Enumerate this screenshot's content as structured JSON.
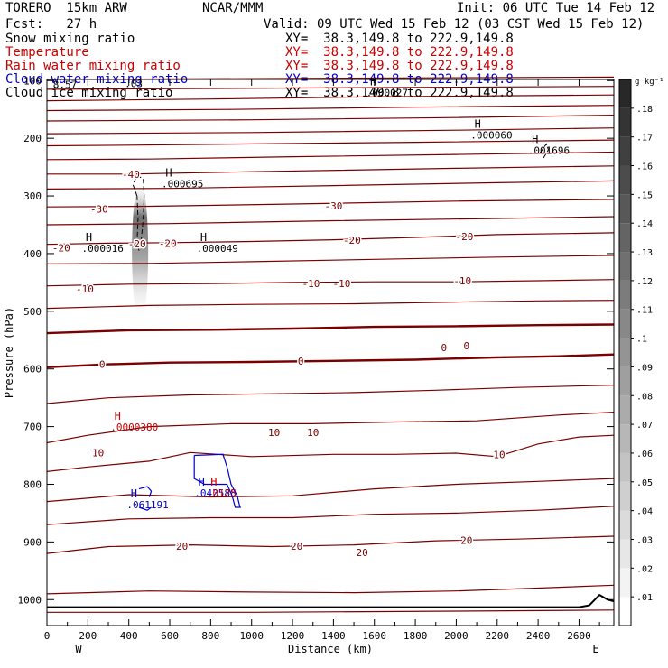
{
  "header": {
    "model": "TORERO  15km ARW",
    "org": "NCAR/MMM",
    "init": "Init: 06 UTC Tue 14 Feb 12",
    "fcst": "Fcst:   27 h",
    "valid": "Valid: 09 UTC Wed 15 Feb 12 (03 CST Wed 15 Feb 12)"
  },
  "legend": [
    {
      "label": "Snow mixing ratio",
      "xy": "XY=  38.3,149.8 to 222.9,149.8",
      "color": "#000000"
    },
    {
      "label": "Temperature",
      "xy": "XY=  38.3,149.8 to 222.9,149.8",
      "color": "#cc0000"
    },
    {
      "label": "Rain water mixing ratio",
      "xy": "XY=  38.3,149.8 to 222.9,149.8",
      "color": "#cc0000"
    },
    {
      "label": "Cloud water mixing ratio",
      "xy": "XY=  38.3,149.8 to 222.9,149.8",
      "color": "#0000cc"
    },
    {
      "label": "Cloud ice mixing ratio",
      "xy": "XY=  38.3,149.8 to 222.9,149.8",
      "color": "#000000"
    }
  ],
  "colors": {
    "temperature_contour": "#7a0000",
    "cloud_water": "#0000cc",
    "rain_water": "#cc0000",
    "snow": "#000000",
    "terrain": "#000000"
  },
  "chart_data": {
    "type": "contour-cross-section",
    "x_axis": {
      "label": "Distance (km)",
      "range": [
        0,
        2770
      ],
      "ticks": [
        0,
        200,
        400,
        600,
        800,
        1000,
        1200,
        1400,
        1600,
        1800,
        2000,
        2200,
        2400,
        2600
      ],
      "left_end_label": "W",
      "right_end_label": "E"
    },
    "y_axis": {
      "label": "Pressure (hPa)",
      "range": [
        1045,
        98
      ],
      "ticks": [
        100,
        200,
        300,
        400,
        500,
        600,
        700,
        800,
        900,
        1000
      ]
    },
    "temperature_contours": [
      {
        "level": -40,
        "points": [
          [
            0,
            98
          ],
          [
            2770,
            94
          ]
        ]
      },
      {
        "level": -40,
        "points": [
          [
            0,
            115
          ],
          [
            2770,
            110
          ]
        ]
      },
      {
        "level": -40,
        "points": [
          [
            0,
            135
          ],
          [
            800,
            132
          ],
          [
            1600,
            128
          ],
          [
            2770,
            125
          ]
        ]
      },
      {
        "level": -40,
        "points": [
          [
            0,
            152
          ],
          [
            900,
            150
          ],
          [
            1800,
            146
          ],
          [
            2770,
            143
          ]
        ]
      },
      {
        "level": -40,
        "points": [
          [
            0,
            170
          ],
          [
            1000,
            168
          ],
          [
            2000,
            164
          ],
          [
            2770,
            160
          ]
        ]
      },
      {
        "level": -40,
        "points": [
          [
            0,
            192
          ],
          [
            1000,
            190
          ],
          [
            2000,
            186
          ],
          [
            2770,
            182
          ]
        ]
      },
      {
        "level": -40,
        "points": [
          [
            0,
            213
          ],
          [
            400,
            212
          ],
          [
            900,
            210
          ],
          [
            1800,
            207
          ],
          [
            2770,
            203
          ]
        ]
      },
      {
        "level": -40,
        "points": [
          [
            0,
            237
          ],
          [
            500,
            236
          ],
          [
            1200,
            232
          ],
          [
            2000,
            228
          ],
          [
            2770,
            224
          ]
        ]
      },
      {
        "level": -40,
        "points": [
          [
            0,
            262
          ],
          [
            400,
            262
          ],
          [
            1000,
            258
          ],
          [
            2000,
            252
          ],
          [
            2770,
            248
          ]
        ]
      },
      {
        "level": -40,
        "points": [
          [
            0,
            288
          ],
          [
            600,
            287
          ],
          [
            1400,
            282
          ],
          [
            2200,
            277
          ],
          [
            2770,
            274
          ]
        ]
      },
      {
        "level": -30,
        "points": [
          [
            0,
            319
          ],
          [
            500,
            318
          ],
          [
            1200,
            314
          ],
          [
            2000,
            309
          ],
          [
            2770,
            306
          ]
        ]
      },
      {
        "level": -30,
        "points": [
          [
            0,
            350
          ],
          [
            600,
            348
          ],
          [
            1400,
            343
          ],
          [
            2200,
            339
          ],
          [
            2770,
            336
          ]
        ]
      },
      {
        "level": -20,
        "points": [
          [
            0,
            384
          ],
          [
            300,
            382
          ],
          [
            600,
            381
          ],
          [
            1000,
            379
          ],
          [
            1400,
            376
          ],
          [
            1800,
            372
          ],
          [
            2200,
            367
          ],
          [
            2770,
            364
          ]
        ]
      },
      {
        "level": -20,
        "points": [
          [
            0,
            418
          ],
          [
            500,
            417
          ],
          [
            1000,
            414
          ],
          [
            1600,
            410
          ],
          [
            2200,
            406
          ],
          [
            2770,
            403
          ]
        ]
      },
      {
        "level": -10,
        "points": [
          [
            0,
            456
          ],
          [
            400,
            453
          ],
          [
            800,
            452
          ],
          [
            1200,
            450
          ],
          [
            1600,
            449
          ],
          [
            2000,
            449
          ],
          [
            2400,
            447
          ],
          [
            2770,
            445
          ]
        ]
      },
      {
        "level": -10,
        "points": [
          [
            0,
            495
          ],
          [
            500,
            490
          ],
          [
            1000,
            488
          ],
          [
            1500,
            487
          ],
          [
            2000,
            484
          ],
          [
            2400,
            482
          ],
          [
            2770,
            481
          ]
        ]
      },
      {
        "level": 0,
        "points": [
          [
            0,
            538
          ],
          [
            400,
            533
          ],
          [
            800,
            532
          ],
          [
            1200,
            530
          ],
          [
            1600,
            527
          ],
          [
            2000,
            526
          ],
          [
            2400,
            524
          ],
          [
            2770,
            523
          ]
        ]
      },
      {
        "level": 0,
        "points": [
          [
            0,
            597
          ],
          [
            300,
            592
          ],
          [
            600,
            589
          ],
          [
            1000,
            588
          ],
          [
            1400,
            586
          ],
          [
            1800,
            584
          ],
          [
            2200,
            580
          ],
          [
            2500,
            578
          ],
          [
            2770,
            575
          ]
        ]
      },
      {
        "level": 10,
        "points": [
          [
            0,
            660
          ],
          [
            300,
            650
          ],
          [
            700,
            645
          ],
          [
            1100,
            643
          ],
          [
            1500,
            641
          ],
          [
            1900,
            637
          ],
          [
            2300,
            632
          ],
          [
            2770,
            628
          ]
        ]
      },
      {
        "level": 10,
        "points": [
          [
            0,
            728
          ],
          [
            200,
            715
          ],
          [
            500,
            700
          ],
          [
            900,
            695
          ],
          [
            1300,
            695
          ],
          [
            1700,
            692
          ],
          [
            2100,
            690
          ],
          [
            2500,
            680
          ],
          [
            2770,
            675
          ]
        ]
      },
      {
        "level": 10,
        "points": [
          [
            0,
            778
          ],
          [
            200,
            770
          ],
          [
            500,
            760
          ],
          [
            700,
            745
          ],
          [
            1000,
            752
          ],
          [
            1400,
            748
          ],
          [
            1700,
            748
          ],
          [
            2000,
            746
          ],
          [
            2200,
            752
          ],
          [
            2400,
            730
          ],
          [
            2600,
            718
          ],
          [
            2770,
            715
          ]
        ]
      },
      {
        "level": 10,
        "points": [
          [
            0,
            830
          ],
          [
            400,
            818
          ],
          [
            800,
            822
          ],
          [
            1200,
            820
          ],
          [
            1600,
            808
          ],
          [
            2000,
            800
          ],
          [
            2400,
            795
          ],
          [
            2770,
            790
          ]
        ]
      },
      {
        "level": 20,
        "points": [
          [
            0,
            870
          ],
          [
            400,
            860
          ],
          [
            800,
            858
          ],
          [
            1200,
            858
          ],
          [
            1600,
            852
          ],
          [
            2000,
            850
          ],
          [
            2400,
            845
          ],
          [
            2770,
            838
          ]
        ]
      },
      {
        "level": 20,
        "points": [
          [
            0,
            920
          ],
          [
            300,
            908
          ],
          [
            700,
            905
          ],
          [
            1100,
            908
          ],
          [
            1500,
            905
          ],
          [
            1900,
            898
          ],
          [
            2300,
            895
          ],
          [
            2770,
            890
          ]
        ]
      },
      {
        "level": 20,
        "points": [
          [
            0,
            990
          ],
          [
            500,
            985
          ],
          [
            1000,
            987
          ],
          [
            1500,
            988
          ],
          [
            2000,
            985
          ],
          [
            2400,
            980
          ],
          [
            2770,
            975
          ]
        ]
      },
      {
        "level": 20,
        "points": [
          [
            0,
            1022
          ],
          [
            1000,
            1022
          ],
          [
            2000,
            1020
          ],
          [
            2770,
            1018
          ]
        ]
      }
    ],
    "contour_labels": [
      {
        "text": "-40",
        "x": 410,
        "y": 262
      },
      {
        "text": "-30",
        "x": 255,
        "y": 323
      },
      {
        "text": "-30",
        "x": 1400,
        "y": 317
      },
      {
        "text": "-20",
        "x": 70,
        "y": 390
      },
      {
        "text": "-20",
        "x": 440,
        "y": 383
      },
      {
        "text": "-20",
        "x": 590,
        "y": 382
      },
      {
        "text": "-20",
        "x": 1490,
        "y": 377
      },
      {
        "text": "-20",
        "x": 2040,
        "y": 370
      },
      {
        "text": "-10",
        "x": 185,
        "y": 461
      },
      {
        "text": "-10",
        "x": 1290,
        "y": 452
      },
      {
        "text": "-10",
        "x": 1440,
        "y": 452
      },
      {
        "text": "-10",
        "x": 2030,
        "y": 447
      },
      {
        "text": "0",
        "x": 270,
        "y": 592
      },
      {
        "text": "0",
        "x": 1240,
        "y": 586
      },
      {
        "text": "0",
        "x": 1940,
        "y": 563
      },
      {
        "text": "0",
        "x": 2050,
        "y": 560
      },
      {
        "text": "10",
        "x": 250,
        "y": 745
      },
      {
        "text": "10",
        "x": 1110,
        "y": 710
      },
      {
        "text": "10",
        "x": 1300,
        "y": 710
      },
      {
        "text": "10",
        "x": 2210,
        "y": 748
      },
      {
        "text": "20",
        "x": 660,
        "y": 907
      },
      {
        "text": "20",
        "x": 1220,
        "y": 907
      },
      {
        "text": "20",
        "x": 1540,
        "y": 918
      },
      {
        "text": "20",
        "x": 2050,
        "y": 897
      }
    ],
    "extrema": [
      {
        "mark": "H",
        "value": ".000027",
        "x": 1560,
        "y": 108,
        "color": "#000000"
      },
      {
        "mark": "H",
        "value": ".000060",
        "x": 2070,
        "y": 182,
        "color": "#000000"
      },
      {
        "mark": "H",
        "value": ".001696",
        "x": 2350,
        "y": 208,
        "color": "#000000"
      },
      {
        "mark": "H",
        "value": ".000695",
        "x": 560,
        "y": 266,
        "color": "#000000"
      },
      {
        "mark": "H",
        "value": ".000016",
        "x": 170,
        "y": 378,
        "color": "#000000"
      },
      {
        "mark": "H",
        "value": ".000049",
        "x": 730,
        "y": 378,
        "color": "#000000"
      },
      {
        "mark": "H",
        "value": ".0000380",
        "x": 310,
        "y": 688,
        "color": "#cc0000"
      },
      {
        "mark": "H",
        "value": ".061191",
        "x": 390,
        "y": 823,
        "color": "#0000cc"
      },
      {
        "mark": "H",
        "value": ".042588",
        "x": 720,
        "y": 802,
        "color": "#0000cc"
      },
      {
        "mark": "H",
        "value": ".0125",
        "x": 780,
        "y": 802,
        "color": "#cc0000"
      }
    ],
    "corner_labels": [
      {
        "text": "8.57",
        "x": 30,
        "y": 113,
        "color": "#000000"
      },
      {
        "text": ".03",
        "x": 380,
        "y": 111,
        "color": "#000000"
      }
    ],
    "cloud_water_contours": [
      {
        "points": [
          [
            720,
            750
          ],
          [
            860,
            748
          ],
          [
            880,
            770
          ],
          [
            900,
            800
          ],
          [
            930,
            820
          ],
          [
            940,
            835
          ],
          [
            945,
            840
          ],
          [
            920,
            840
          ],
          [
            905,
            820
          ],
          [
            880,
            800
          ],
          [
            840,
            800
          ],
          [
            770,
            800
          ],
          [
            720,
            790
          ],
          [
            720,
            750
          ]
        ]
      },
      {
        "points": [
          [
            450,
            808
          ],
          [
            490,
            804
          ],
          [
            510,
            812
          ],
          [
            500,
            822
          ]
        ]
      },
      {
        "points": [
          [
            450,
            840
          ],
          [
            490,
            845
          ],
          [
            510,
            840
          ]
        ]
      }
    ],
    "cloud_ice_contours": [
      {
        "points": [
          [
            440,
            300
          ],
          [
            420,
            280
          ],
          [
            440,
            265
          ],
          [
            470,
            270
          ],
          [
            475,
            300
          ],
          [
            470,
            340
          ],
          [
            460,
            380
          ],
          [
            450,
            395
          ],
          [
            440,
            380
          ],
          [
            445,
            340
          ],
          [
            440,
            300
          ]
        ]
      },
      {
        "points": [
          [
            2410,
            225
          ],
          [
            2440,
            210
          ],
          [
            2450,
            220
          ],
          [
            2420,
            238
          ]
        ]
      }
    ],
    "snow_plume": {
      "center_x": 455,
      "top": 275,
      "bottom": 520,
      "max_value": 0.13
    },
    "terrain": [
      [
        0,
        1013
      ],
      [
        2000,
        1013
      ],
      [
        2600,
        1013
      ],
      [
        2650,
        1010
      ],
      [
        2700,
        992
      ],
      [
        2740,
        1000
      ],
      [
        2770,
        1003
      ]
    ],
    "colorbar": {
      "unit": "g kg⁻¹",
      "levels": [
        ".01",
        ".02",
        ".03",
        ".04",
        ".05",
        ".06",
        ".07",
        ".08",
        ".09",
        ".1",
        ".11",
        ".12",
        ".13",
        ".14",
        ".15",
        ".16",
        ".17",
        ".18"
      ],
      "min": 0,
      "max": 0.19
    }
  }
}
